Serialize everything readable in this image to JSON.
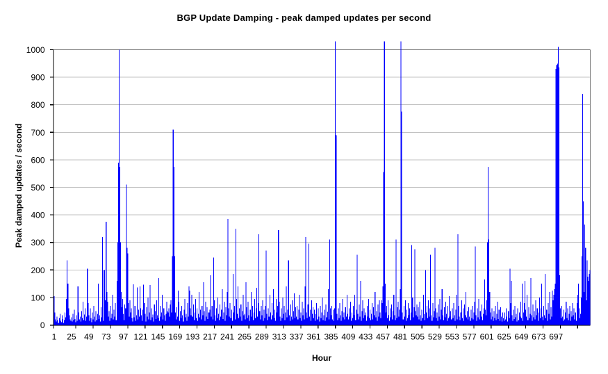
{
  "chart_data": {
    "type": "bar",
    "title": "BGP Update Damping - peak damped updates per second",
    "xlabel": "Hour",
    "ylabel": "Peak damped updates / second",
    "x_first_hour": 1,
    "x_last_hour": 744,
    "x_tick_labels": [
      1,
      25,
      49,
      73,
      97,
      121,
      145,
      169,
      193,
      217,
      241,
      265,
      289,
      313,
      337,
      361,
      385,
      409,
      433,
      457,
      481,
      505,
      529,
      553,
      577,
      601,
      625,
      649,
      673,
      697
    ],
    "y_ticks": [
      0,
      100,
      200,
      300,
      400,
      500,
      600,
      700,
      800,
      900,
      1000
    ],
    "ylim": [
      0,
      1000
    ],
    "clip_max": 1000,
    "grid": true,
    "legend": false,
    "bar_color": "#0000ff",
    "gridline_color": "#c0c0c0",
    "plot_border_color": "#808080",
    "axis_color": "#000000",
    "values": [
      105,
      45,
      20,
      12,
      30,
      18,
      8,
      25,
      40,
      15,
      10,
      35,
      22,
      8,
      18,
      45,
      28,
      95,
      235,
      150,
      60,
      35,
      20,
      15,
      28,
      12,
      40,
      18,
      55,
      22,
      10,
      35,
      15,
      140,
      45,
      20,
      30,
      12,
      50,
      25,
      85,
      18,
      38,
      60,
      15,
      30,
      205,
      80,
      35,
      15,
      60,
      25,
      10,
      45,
      20,
      70,
      30,
      12,
      50,
      18,
      40,
      150,
      22,
      35,
      12,
      65,
      28,
      320,
      15,
      200,
      200,
      90,
      375,
      120,
      85,
      30,
      50,
      15,
      70,
      25,
      40,
      110,
      20,
      55,
      30,
      80,
      18,
      160,
      300,
      590,
      1000,
      575,
      300,
      120,
      65,
      95,
      40,
      18,
      75,
      60,
      510,
      280,
      260,
      80,
      30,
      90,
      45,
      60,
      25,
      12,
      148,
      28,
      70,
      15,
      35,
      136,
      20,
      55,
      30,
      140,
      60,
      35,
      15,
      55,
      146,
      80,
      40,
      12,
      65,
      30,
      100,
      20,
      45,
      145,
      18,
      60,
      28,
      38,
      12,
      75,
      50,
      22,
      90,
      35,
      25,
      170,
      15,
      70,
      30,
      45,
      110,
      20,
      60,
      35,
      15,
      40,
      85,
      50,
      45,
      60,
      30,
      75,
      90,
      45,
      250,
      710,
      575,
      250,
      45,
      20,
      65,
      30,
      125,
      85,
      15,
      50,
      25,
      70,
      35,
      12,
      55,
      95,
      28,
      40,
      15,
      80,
      30,
      140,
      125,
      60,
      35,
      110,
      30,
      75,
      18,
      45,
      95,
      25,
      60,
      15,
      40,
      120,
      28,
      55,
      20,
      70,
      35,
      155,
      50,
      15,
      85,
      30,
      65,
      22,
      45,
      45,
      55,
      180,
      30,
      70,
      20,
      245,
      90,
      35,
      15,
      60,
      25,
      100,
      40,
      18,
      75,
      30,
      55,
      130,
      22,
      45,
      85,
      15,
      65,
      35,
      120,
      385,
      60,
      30,
      80,
      25,
      55,
      15,
      185,
      45,
      70,
      20,
      350,
      95,
      40,
      140,
      25,
      60,
      30,
      75,
      15,
      50,
      110,
      35,
      40,
      20,
      155,
      65,
      25,
      85,
      35,
      15,
      55,
      120,
      30,
      70,
      18,
      45,
      95,
      25,
      60,
      135,
      30,
      80,
      330,
      50,
      20,
      70,
      35,
      90,
      15,
      55,
      25,
      70,
      270,
      40,
      18,
      60,
      30,
      110,
      45,
      20,
      80,
      35,
      130,
      25,
      55,
      15,
      95,
      45,
      70,
      345,
      85,
      30,
      15,
      60,
      25,
      100,
      40,
      70,
      18,
      45,
      140,
      28,
      55,
      235,
      35,
      15,
      75,
      30,
      90,
      20,
      50,
      115,
      25,
      65,
      30,
      70,
      20,
      55,
      110,
      25,
      45,
      15,
      85,
      35,
      60,
      20,
      140,
      320,
      45,
      25,
      75,
      295,
      30,
      55,
      15,
      90,
      40,
      65,
      25,
      55,
      15,
      40,
      80,
      20,
      60,
      30,
      12,
      70,
      25,
      45,
      100,
      18,
      35,
      55,
      15,
      75,
      28,
      48,
      130,
      20,
      310,
      60,
      35,
      70,
      20,
      55,
      15,
      60,
      1030,
      690,
      40,
      18,
      60,
      25,
      80,
      35,
      15,
      50,
      95,
      28,
      45,
      20,
      65,
      30,
      110,
      40,
      20,
      60,
      30,
      85,
      15,
      45,
      25,
      70,
      35,
      110,
      18,
      55,
      255,
      40,
      20,
      75,
      30,
      160,
      15,
      50,
      90,
      25,
      60,
      35,
      45,
      15,
      70,
      30,
      95,
      25,
      55,
      18,
      40,
      80,
      20,
      65,
      35,
      120,
      28,
      50,
      15,
      75,
      30,
      90,
      45,
      25,
      90,
      80,
      140,
      555,
      1030,
      150,
      45,
      70,
      25,
      90,
      35,
      15,
      60,
      28,
      75,
      20,
      50,
      110,
      35,
      18,
      310,
      25,
      65,
      85,
      30,
      55,
      130,
      1030,
      775,
      45,
      20,
      70,
      30,
      90,
      15,
      55,
      25,
      80,
      35,
      60,
      18,
      45,
      290,
      100,
      28,
      65,
      275,
      50,
      35,
      75,
      30,
      65,
      20,
      85,
      35,
      15,
      55,
      25,
      110,
      40,
      18,
      200,
      45,
      70,
      25,
      90,
      30,
      60,
      255,
      35,
      15,
      80,
      28,
      50,
      280,
      60,
      25,
      45,
      15,
      75,
      30,
      95,
      20,
      55,
      130,
      35,
      18,
      65,
      28,
      85,
      40,
      15,
      70,
      25,
      105,
      30,
      50,
      20,
      60,
      25,
      80,
      35,
      15,
      55,
      110,
      20,
      330,
      70,
      30,
      18,
      45,
      90,
      25,
      60,
      15,
      75,
      35,
      120,
      28,
      50,
      20,
      65,
      30,
      15,
      55,
      25,
      70,
      20,
      45,
      85,
      285,
      35,
      15,
      60,
      28,
      95,
      20,
      50,
      30,
      75,
      18,
      40,
      60,
      165,
      55,
      35,
      90,
      300,
      575,
      310,
      120,
      45,
      20,
      60,
      30,
      15,
      50,
      25,
      70,
      18,
      40,
      85,
      22,
      55,
      15,
      65,
      30,
      12,
      45,
      25,
      15,
      45,
      20,
      60,
      30,
      12,
      50,
      25,
      205,
      80,
      160,
      35,
      15,
      55,
      22,
      70,
      28,
      40,
      12,
      60,
      18,
      45,
      30,
      85,
      25,
      150,
      15,
      45,
      80,
      160,
      55,
      30,
      110,
      18,
      65,
      25,
      40,
      170,
      35,
      15,
      75,
      28,
      50,
      20,
      90,
      35,
      60,
      15,
      45,
      100,
      25,
      60,
      150,
      30,
      18,
      70,
      35,
      185,
      25,
      55,
      15,
      80,
      40,
      120,
      20,
      65,
      30,
      125,
      90,
      110,
      130,
      150,
      930,
      945,
      950,
      1010,
      935,
      180,
      60,
      25,
      70,
      30,
      15,
      55,
      20,
      45,
      85,
      25,
      60,
      18,
      40,
      70,
      15,
      50,
      30,
      80,
      35,
      60,
      20,
      45,
      15,
      80,
      110,
      150,
      60,
      25,
      40,
      100,
      250,
      840,
      450,
      120,
      365,
      280,
      90,
      235,
      175,
      160,
      185,
      200
    ]
  }
}
